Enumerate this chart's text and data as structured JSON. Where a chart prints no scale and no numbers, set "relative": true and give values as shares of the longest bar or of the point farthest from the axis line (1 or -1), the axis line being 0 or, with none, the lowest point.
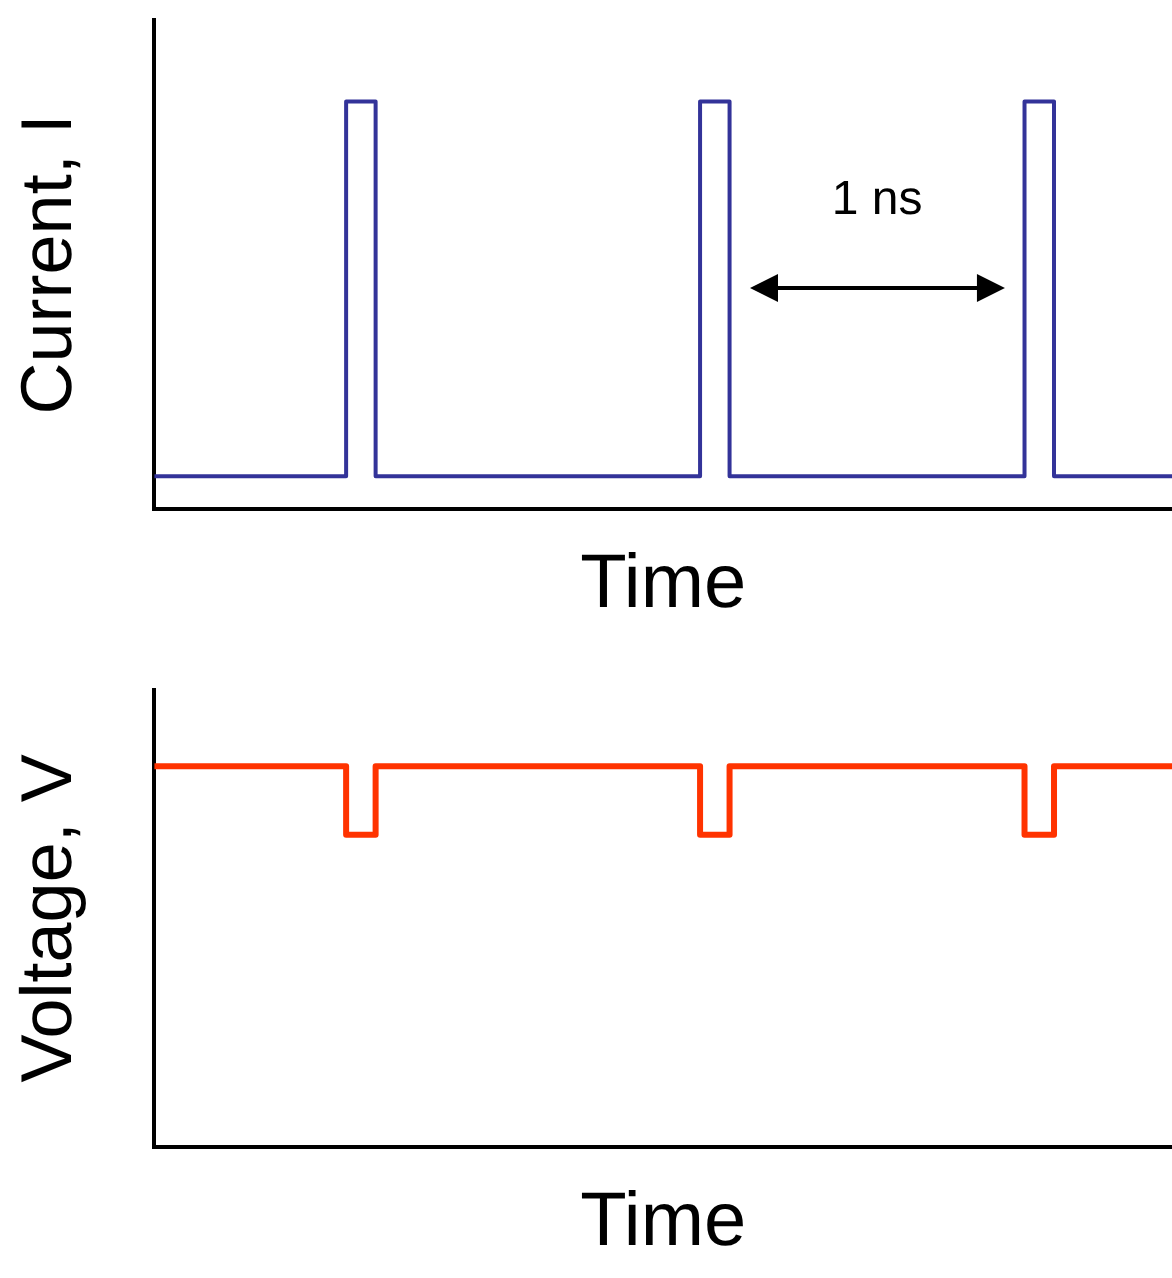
{
  "chart_data": [
    {
      "type": "step",
      "ylabel": "Current, I",
      "xlabel": "Time",
      "relative": true,
      "legend": false,
      "grid": false,
      "annotations": [
        "1 ns"
      ],
      "categories": [
        null,
        null,
        null,
        null,
        null,
        null,
        null,
        null,
        null,
        null,
        null,
        null,
        null,
        null,
        null,
        null,
        null,
        null,
        null,
        null,
        null,
        null,
        null,
        null,
        null,
        null,
        null,
        null,
        null,
        null,
        null,
        null,
        null,
        null,
        null,
        null,
        null,
        null,
        null,
        null,
        null,
        null,
        null,
        null,
        null,
        null,
        null,
        null,
        null,
        null,
        null,
        null,
        null,
        null,
        null,
        null,
        null,
        null,
        null,
        null,
        null,
        null,
        null,
        null,
        null,
        null,
        null,
        null,
        null,
        null
      ],
      "series": [
        {
          "color": "#333399",
          "values": [
            0.08,
            0.08,
            0.08,
            0.08,
            0.08,
            0.08,
            0.08,
            0.08,
            0.08,
            0.08,
            0.08,
            0.08,
            0.08,
            1,
            1,
            0.08,
            0.08,
            0.08,
            0.08,
            0.08,
            0.08,
            0.08,
            0.08,
            0.08,
            0.08,
            0.08,
            0.08,
            0.08,
            0.08,
            0.08,
            0.08,
            0.08,
            0.08,
            0.08,
            0.08,
            0.08,
            0.08,
            1,
            1,
            0.08,
            0.08,
            0.08,
            0.08,
            0.08,
            0.08,
            0.08,
            0.08,
            0.08,
            0.08,
            0.08,
            0.08,
            0.08,
            0.08,
            0.08,
            0.08,
            0.08,
            0.08,
            0.08,
            0.08,
            1,
            1,
            0.08,
            0.08,
            0.08,
            0.08,
            0.08,
            0.08,
            0.08,
            0.08,
            0.08
          ]
        }
      ]
    },
    {
      "type": "step",
      "ylabel": "Voltage, V",
      "xlabel": "Time",
      "relative": true,
      "legend": false,
      "grid": false,
      "categories": [
        null,
        null,
        null,
        null,
        null,
        null,
        null,
        null,
        null,
        null,
        null,
        null,
        null,
        null,
        null,
        null,
        null,
        null,
        null,
        null,
        null,
        null,
        null,
        null,
        null,
        null,
        null,
        null,
        null,
        null,
        null,
        null,
        null,
        null,
        null,
        null,
        null,
        null,
        null,
        null,
        null,
        null,
        null,
        null,
        null,
        null,
        null,
        null,
        null,
        null,
        null,
        null,
        null,
        null,
        null,
        null,
        null,
        null,
        null,
        null,
        null,
        null,
        null,
        null,
        null,
        null,
        null,
        null,
        null,
        null
      ],
      "series": [
        {
          "color": "#ff3300",
          "values": [
            1,
            1,
            1,
            1,
            1,
            1,
            1,
            1,
            1,
            1,
            1,
            1,
            1,
            0.82,
            0.82,
            1,
            1,
            1,
            1,
            1,
            1,
            1,
            1,
            1,
            1,
            1,
            1,
            1,
            1,
            1,
            1,
            1,
            1,
            1,
            1,
            1,
            1,
            0.82,
            0.82,
            1,
            1,
            1,
            1,
            1,
            1,
            1,
            1,
            1,
            1,
            1,
            1,
            1,
            1,
            1,
            1,
            1,
            1,
            1,
            1,
            0.82,
            0.82,
            1,
            1,
            1,
            1,
            1,
            1,
            1,
            1,
            1
          ]
        }
      ]
    }
  ]
}
